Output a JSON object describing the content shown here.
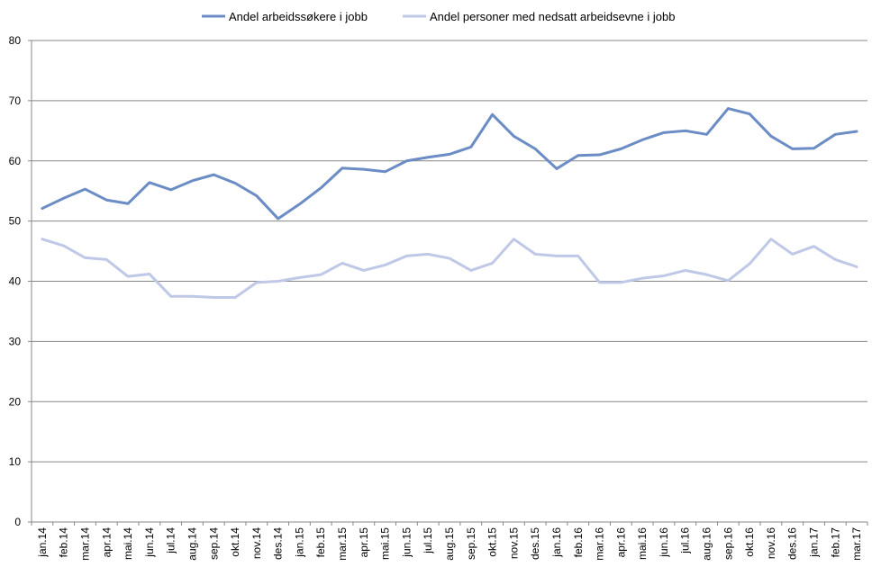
{
  "chart_data": {
    "type": "line",
    "categories": [
      "jan.14",
      "feb.14",
      "mar.14",
      "apr.14",
      "mai.14",
      "jun.14",
      "jul.14",
      "aug.14",
      "sep.14",
      "okt.14",
      "nov.14",
      "des.14",
      "jan.15",
      "feb.15",
      "mar.15",
      "apr.15",
      "mai.15",
      "jun.15",
      "jul.15",
      "aug.15",
      "sep.15",
      "okt.15",
      "nov.15",
      "des.15",
      "jan.16",
      "feb.16",
      "mar.16",
      "apr.16",
      "mai.16",
      "jun.16",
      "jul.16",
      "aug.16",
      "sep.16",
      "okt.16",
      "nov.16",
      "des.16",
      "jan.17",
      "feb.17",
      "mar.17"
    ],
    "series": [
      {
        "name": "Andel arbeidssøkere i jobb",
        "color": "#6b8cc4",
        "values": [
          52.1,
          53.8,
          55.3,
          53.5,
          52.9,
          56.4,
          55.2,
          56.7,
          57.7,
          56.3,
          54.2,
          50.4,
          52.8,
          55.5,
          58.8,
          58.6,
          58.2,
          60.0,
          60.6,
          61.1,
          62.3,
          67.7,
          64.1,
          62.0,
          58.7,
          60.9,
          61.0,
          62.0,
          63.5,
          64.7,
          65.0,
          64.4,
          68.7,
          67.8,
          64.1,
          62.0,
          62.1,
          64.4,
          64.9
        ]
      },
      {
        "name": "Andel personer med nedsatt arbeidsevne i jobb",
        "color": "#bfc8e6",
        "values": [
          47.0,
          45.9,
          43.9,
          43.6,
          40.8,
          41.2,
          37.5,
          37.5,
          37.3,
          37.3,
          39.8,
          40.0,
          40.6,
          41.1,
          43.0,
          41.8,
          42.7,
          44.2,
          44.5,
          43.8,
          41.8,
          43.0,
          47.0,
          44.5,
          44.2,
          44.2,
          39.8,
          39.8,
          40.5,
          40.9,
          41.8,
          41.1,
          40.1,
          42.9,
          47.0,
          44.5,
          45.8,
          43.6,
          42.4
        ]
      }
    ],
    "ylim": [
      0,
      80
    ],
    "yticks": [
      "0",
      "10",
      "20",
      "30",
      "40",
      "50",
      "60",
      "70",
      "80"
    ],
    "grid": true,
    "legend_position": "top"
  }
}
